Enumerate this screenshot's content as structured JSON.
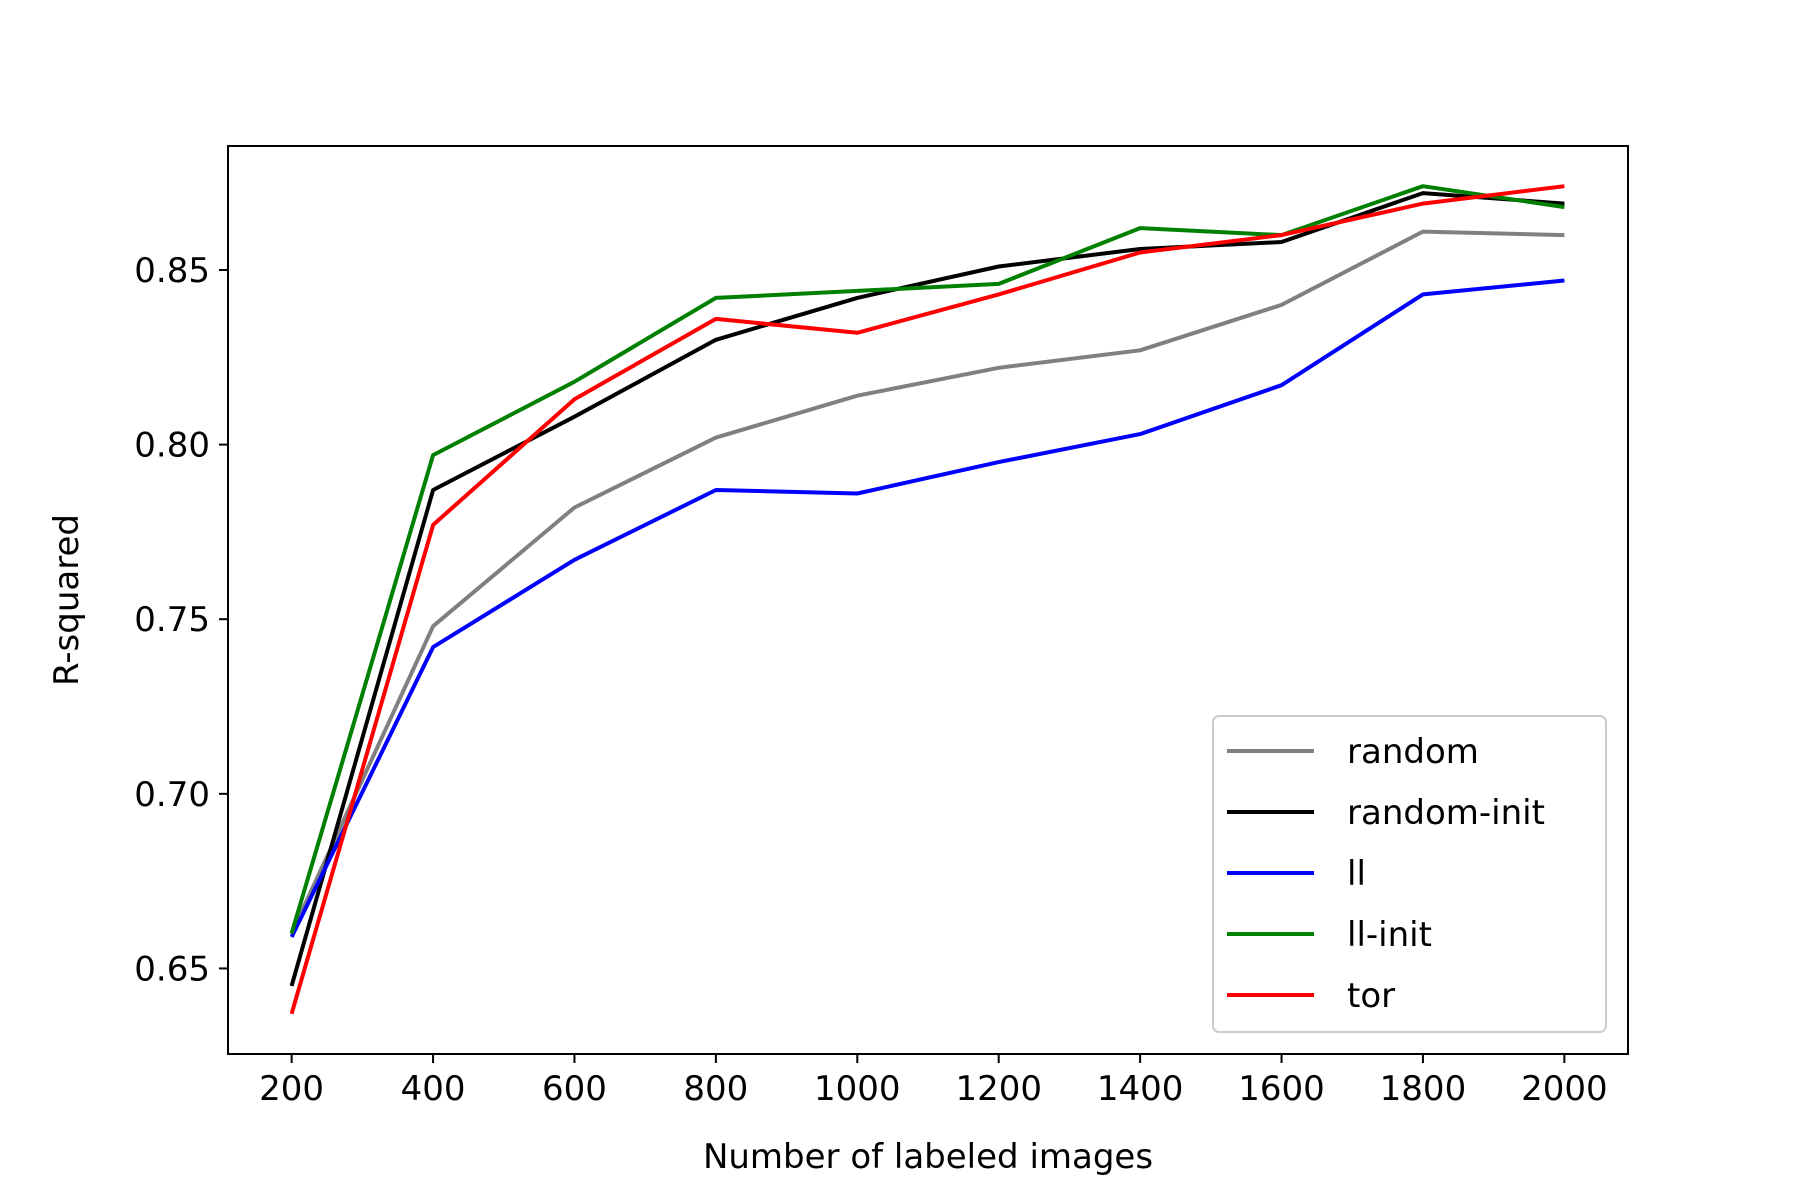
{
  "chart_data": {
    "type": "line",
    "title": "",
    "xlabel": "Number of labeled images",
    "ylabel": "R-squared",
    "x": [
      200,
      400,
      600,
      800,
      1000,
      1200,
      1400,
      1600,
      1800,
      2000
    ],
    "xticks": [
      "200",
      "400",
      "600",
      "800",
      "1000",
      "1200",
      "1400",
      "1600",
      "1800",
      "2000"
    ],
    "yticks": [
      "0.65",
      "0.70",
      "0.75",
      "0.80",
      "0.85"
    ],
    "ytick_values": [
      0.65,
      0.7,
      0.75,
      0.8,
      0.85
    ],
    "xlim": [
      110,
      2090
    ],
    "ylim": [
      0.6255,
      0.8855
    ],
    "grid": false,
    "legend_position": "lower-right",
    "series": [
      {
        "name": "random",
        "color": "#808080",
        "values": [
          0.66,
          0.748,
          0.782,
          0.802,
          0.814,
          0.822,
          0.827,
          0.84,
          0.861,
          0.86
        ]
      },
      {
        "name": "random-init",
        "color": "#000000",
        "values": [
          0.645,
          0.787,
          0.808,
          0.83,
          0.842,
          0.851,
          0.856,
          0.858,
          0.872,
          0.869
        ]
      },
      {
        "name": "ll",
        "color": "#0000ff",
        "values": [
          0.659,
          0.742,
          0.767,
          0.787,
          0.786,
          0.795,
          0.803,
          0.817,
          0.843,
          0.847
        ]
      },
      {
        "name": "ll-init",
        "color": "#008000",
        "values": [
          0.66,
          0.797,
          0.818,
          0.842,
          0.844,
          0.846,
          0.862,
          0.86,
          0.874,
          0.868
        ]
      },
      {
        "name": "tor",
        "color": "#ff0000",
        "values": [
          0.637,
          0.777,
          0.813,
          0.836,
          0.832,
          0.843,
          0.855,
          0.86,
          0.869,
          0.874
        ]
      }
    ]
  }
}
